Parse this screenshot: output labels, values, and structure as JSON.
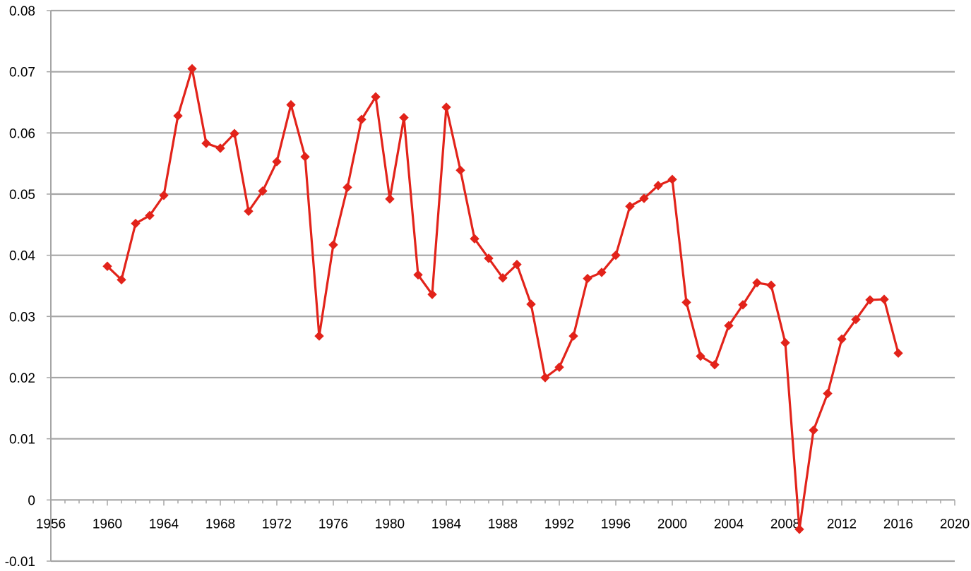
{
  "chart_data": {
    "type": "line",
    "title": "",
    "xlabel": "",
    "ylabel": "",
    "xlim": [
      1956,
      2020
    ],
    "ylim": [
      -0.01,
      0.08
    ],
    "x_ticks": [
      "1956",
      "1960",
      "1964",
      "1968",
      "1972",
      "1976",
      "1980",
      "1984",
      "1988",
      "1992",
      "1996",
      "2000",
      "2004",
      "2008",
      "2012",
      "2016",
      "2020"
    ],
    "y_ticks": [
      "-0.01",
      "0",
      "0.01",
      "0.02",
      "0.03",
      "0.04",
      "0.05",
      "0.06",
      "0.07",
      "0.08"
    ],
    "grid": "horizontal",
    "legend": "none",
    "series": [
      {
        "color": "#e2231a",
        "marker": "diamond",
        "x": [
          1960,
          1961,
          1962,
          1963,
          1964,
          1965,
          1966,
          1967,
          1968,
          1969,
          1970,
          1971,
          1972,
          1973,
          1974,
          1975,
          1976,
          1977,
          1978,
          1979,
          1980,
          1981,
          1982,
          1983,
          1984,
          1985,
          1986,
          1987,
          1988,
          1989,
          1990,
          1991,
          1992,
          1993,
          1994,
          1995,
          1996,
          1997,
          1998,
          1999,
          2000,
          2001,
          2002,
          2003,
          2004,
          2005,
          2006,
          2007,
          2008,
          2009,
          2010,
          2011,
          2012,
          2013,
          2014,
          2015,
          2016
        ],
        "y": [
          0.0382,
          0.036,
          0.0452,
          0.0465,
          0.0498,
          0.0628,
          0.0705,
          0.0583,
          0.0575,
          0.0599,
          0.0472,
          0.0505,
          0.0553,
          0.0646,
          0.0561,
          0.0268,
          0.0417,
          0.0511,
          0.0622,
          0.0659,
          0.0492,
          0.0625,
          0.0368,
          0.0336,
          0.0642,
          0.0539,
          0.0427,
          0.0395,
          0.0363,
          0.0385,
          0.032,
          0.02,
          0.0217,
          0.0268,
          0.0362,
          0.0372,
          0.04,
          0.048,
          0.0493,
          0.0514,
          0.0524,
          0.0323,
          0.0235,
          0.0221,
          0.0285,
          0.0319,
          0.0355,
          0.0351,
          0.0257,
          -0.0048,
          0.0114,
          0.0174,
          0.0263,
          0.0295,
          0.0327,
          0.0328,
          0.024
        ]
      }
    ]
  }
}
